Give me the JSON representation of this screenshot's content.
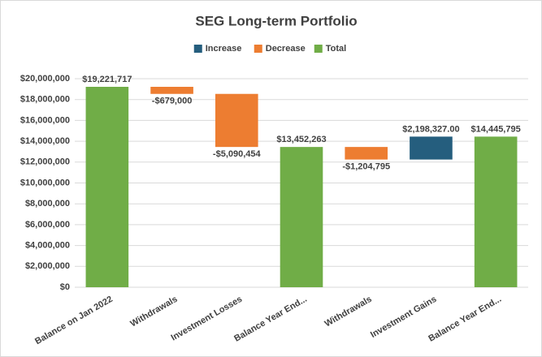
{
  "chart_data": {
    "type": "waterfall",
    "title": "SEG Long-term Portfolio",
    "categories": [
      "Balance on Jan 2022",
      "Withdrawals",
      "Investment Losses",
      "Balance Year End...",
      "Withdrawals",
      "Investment Gains",
      "Balance Year End..."
    ],
    "values": [
      19221717,
      -679000,
      -5090454,
      13452263,
      -1204795,
      2198327,
      14445795
    ],
    "value_labels": [
      "$19,221,717",
      "-$679,000",
      "-$5,090,454",
      "$13,452,263",
      "-$1,204,795",
      "$2,198,327.00",
      "$14,445,795"
    ],
    "is_total": [
      true,
      false,
      false,
      true,
      false,
      false,
      true
    ],
    "series": [
      {
        "name": "Increase",
        "color": "#255e7e"
      },
      {
        "name": "Decrease",
        "color": "#ed7d31"
      },
      {
        "name": "Total",
        "color": "#70ad47"
      }
    ],
    "legend": "top",
    "grid": true,
    "ylim": [
      0,
      20000000
    ],
    "yticks": [
      {
        "value": 0,
        "label": "$0"
      },
      {
        "value": 2000000,
        "label": "$2,000,000"
      },
      {
        "value": 4000000,
        "label": "$4,000,000"
      },
      {
        "value": 6000000,
        "label": "$6,000,000"
      },
      {
        "value": 8000000,
        "label": "$8,000,000"
      },
      {
        "value": 10000000,
        "label": "$10,000,000"
      },
      {
        "value": 12000000,
        "label": "$12,000,000"
      },
      {
        "value": 14000000,
        "label": "$14,000,000"
      },
      {
        "value": 16000000,
        "label": "$16,000,000"
      },
      {
        "value": 18000000,
        "label": "$18,000,000"
      },
      {
        "value": 20000000,
        "label": "$20,000,000"
      }
    ]
  }
}
